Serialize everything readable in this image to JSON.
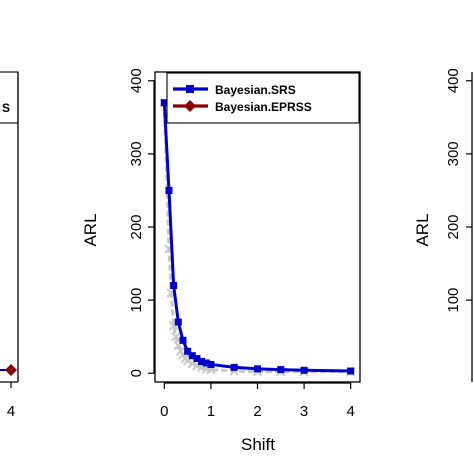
{
  "chart_data": {
    "type": "line",
    "xlabel": "Shift",
    "ylabel": "ARL",
    "xlim": [
      -0.2,
      4.2
    ],
    "ylim": [
      -12,
      412
    ],
    "xticks": [
      0,
      1,
      2,
      3,
      4
    ],
    "yticks": [
      0,
      100,
      200,
      300,
      400
    ],
    "xtick_labels": [
      "0",
      "1",
      "2",
      "3",
      "4"
    ],
    "ytick_labels": [
      "0",
      "100",
      "200",
      "300",
      "400"
    ],
    "legend": {
      "placement": "top-right",
      "entries": [
        "Bayesian.SRS",
        "Bayesian.EPRSS"
      ]
    },
    "grid": false,
    "series": [
      {
        "name": "Bayesian.SRS",
        "color": "#0000cc",
        "marker": "square",
        "x": [
          0,
          0.1,
          0.2,
          0.3,
          0.4,
          0.5,
          0.6,
          0.7,
          0.8,
          0.9,
          1.0,
          1.5,
          2.0,
          2.5,
          3.0,
          4.0
        ],
        "y": [
          370,
          250,
          120,
          70,
          45,
          30,
          24,
          20,
          16,
          14,
          12,
          8,
          6,
          5,
          4,
          3
        ]
      },
      {
        "name": "Bayesian.EPRSS",
        "color": "#8b0000",
        "marker": "diamond",
        "x": [
          0,
          0.1,
          0.15,
          0.2,
          0.25,
          0.3,
          0.35,
          0.4,
          0.45,
          0.5,
          0.6,
          0.7,
          0.8,
          0.9,
          1.0,
          1.5,
          2.0,
          2.5,
          3.0,
          4.0
        ],
        "y": [
          370,
          170,
          110,
          65,
          50,
          38,
          30,
          25,
          20,
          17,
          13,
          10,
          8,
          6,
          5,
          3,
          2,
          2,
          2,
          2
        ]
      }
    ],
    "side_panels": {
      "left": {
        "xtick_labels": [
          "4"
        ],
        "legend_fragment": "S"
      },
      "right": {
        "ylabel": "ARL",
        "ytick_labels": [
          "400",
          "300",
          "200",
          "100"
        ]
      }
    },
    "style": {
      "srs_color": "#0000cc",
      "eprss_color": "#8b0000",
      "fade_color": "#c8c8c8"
    }
  }
}
